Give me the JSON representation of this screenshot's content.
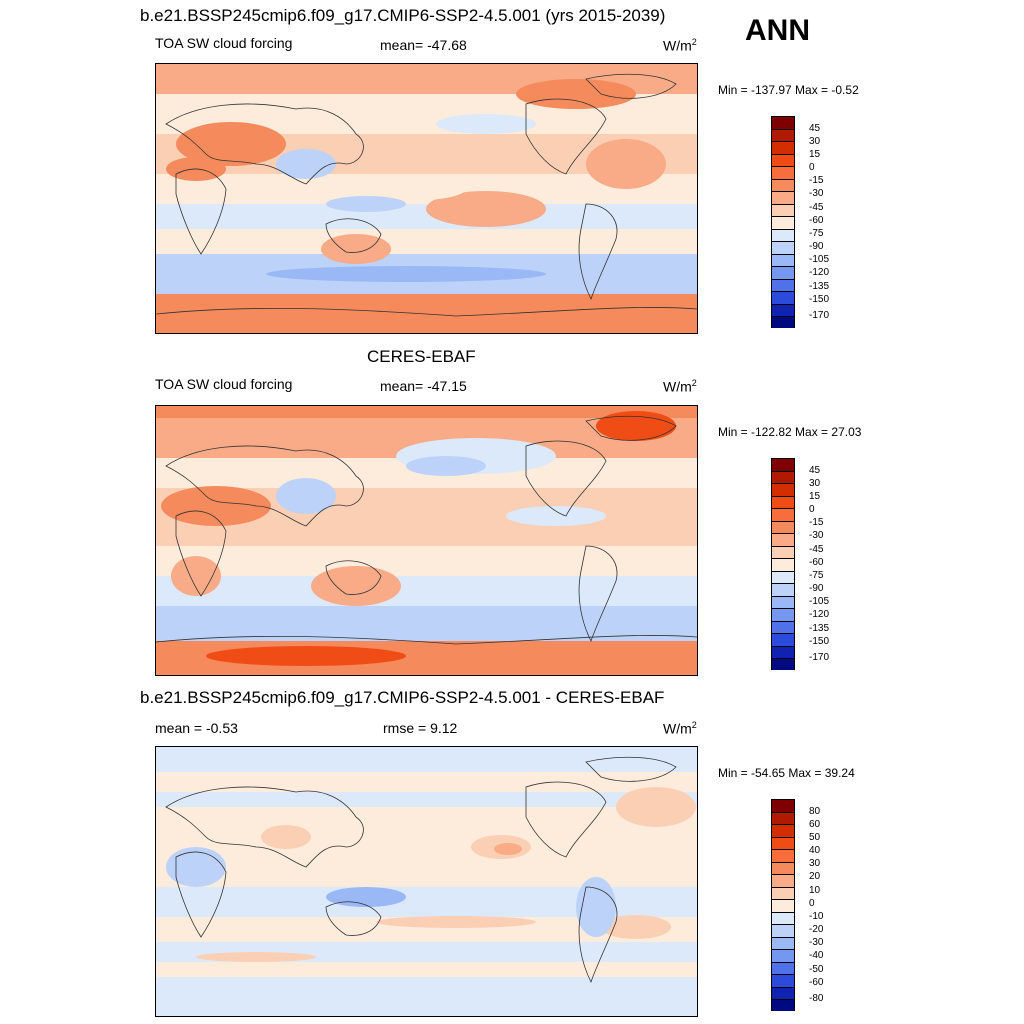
{
  "header": {
    "case_title": "b.e21.BSSP245cmip6.f09_g17.CMIP6-SSP2-4.5.001 (yrs 2015-2039)",
    "season": "ANN"
  },
  "panels": [
    {
      "title": "",
      "variable": "TOA SW cloud forcing",
      "stat": "mean= -47.68",
      "units_base": "W/m",
      "units_exp": "2",
      "minmax": "Min = -137.97 Max =  -0.52",
      "ticks": [
        "45",
        "30",
        "15",
        "0",
        "-15",
        "-30",
        "-45",
        "-60",
        "-75",
        "-90",
        "-105",
        "-120",
        "-135",
        "-150",
        "-170"
      ]
    },
    {
      "title": "CERES-EBAF",
      "variable": "TOA SW cloud forcing",
      "stat": "mean= -47.15",
      "units_base": "W/m",
      "units_exp": "2",
      "minmax": "Min = -122.82 Max =  27.03",
      "ticks": [
        "45",
        "30",
        "15",
        "0",
        "-15",
        "-30",
        "-45",
        "-60",
        "-75",
        "-90",
        "-105",
        "-120",
        "-135",
        "-150",
        "-170"
      ]
    },
    {
      "title": "b.e21.BSSP245cmip6.f09_g17.CMIP6-SSP2-4.5.001 - CERES-EBAF",
      "variable": "mean =  -0.53",
      "stat": "rmse =   9.12",
      "units_base": "W/m",
      "units_exp": "2",
      "minmax": "Min = -54.65 Max =  39.24",
      "ticks": [
        "80",
        "60",
        "50",
        "40",
        "30",
        "20",
        "10",
        "0",
        "-10",
        "-20",
        "-30",
        "-40",
        "-50",
        "-60",
        "-80"
      ]
    }
  ],
  "colors": {
    "palette": [
      "#7f0000",
      "#b01a00",
      "#d22e00",
      "#f04d16",
      "#f76e3c",
      "#f58a5c",
      "#f8ab86",
      "#fbcfb4",
      "#fdebdc",
      "#dce9fb",
      "#bcd2f8",
      "#9ab8f5",
      "#7497f0",
      "#4f72ea",
      "#2c4bdb",
      "#0f22b0",
      "#000a80"
    ],
    "coast": "#333333"
  }
}
